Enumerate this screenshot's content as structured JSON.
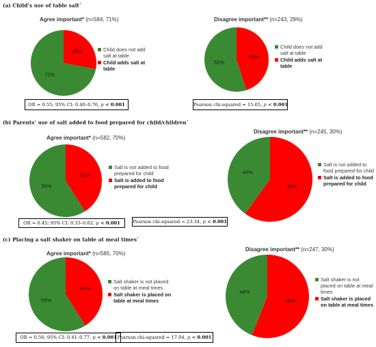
{
  "colors": {
    "green": "#3a8a34",
    "red": "#ff0000"
  },
  "sections": [
    {
      "title": "(a) Child’s use of table salt",
      "dagger": "•"
    },
    {
      "title": "(b) Parents’ use of salt added to food prepared for child/children",
      "dagger": "•"
    },
    {
      "title": "(c) Placing a salt shaker on table at meal times",
      "dagger": "•"
    }
  ],
  "stats": [
    {
      "a": "OR = 0.55; 95% CI: 0.40–0.76, ",
      "p": "p",
      "b": " < 0.001"
    },
    {
      "a": "Pearson chi-squared = 15.65, ",
      "p": "p",
      "b": " < 0.001"
    },
    {
      "a": "OR = 0.45; 95% CI: 0.33–0.62, ",
      "p": "p",
      "b": " < 0.001"
    },
    {
      "a": "Pearson chi-squared = 23.34, ",
      "p": "p",
      "b": " < 0.001"
    },
    {
      "a": "OR = 0.56; 95% CI: 0.41–0.77, ",
      "p": "p",
      "b": " < 0.001"
    },
    {
      "a": "Pearson chi-squared = 17.04, ",
      "p": "p",
      "b": " < 0.001"
    }
  ],
  "chart_data": [
    {
      "type": "pie",
      "title": "Agree important*",
      "n_label": "(n=584, 71%)",
      "categories": [
        "Child does not add salt at table",
        "Child adds salt at table"
      ],
      "values": [
        72,
        28
      ],
      "labels": [
        "72%",
        "28%"
      ],
      "legend": "right"
    },
    {
      "type": "pie",
      "title": "Disagree important**",
      "n_label": "(n=243, 29%)",
      "categories": [
        "Child does not add salt at table",
        "Child adds salt at table"
      ],
      "values": [
        55,
        45
      ],
      "labels": [
        "55%",
        "45%"
      ],
      "legend": "right"
    },
    {
      "type": "pie",
      "title": "Agree important*",
      "n_label": "(n=582, 70%)",
      "categories": [
        "Salt is not added to food prepared for child",
        "Salt is added to food prepared for child"
      ],
      "values": [
        59,
        41
      ],
      "labels": [
        "59%",
        "41%"
      ],
      "legend": "right"
    },
    {
      "type": "pie",
      "title": "Disagree important**",
      "n_label": "(n=245, 30%)",
      "categories": [
        "Salt is not added to food prepared for child",
        "Salt is added to food prepared for child"
      ],
      "values": [
        40,
        60
      ],
      "labels": [
        "40%",
        "60%"
      ],
      "legend": "right"
    },
    {
      "type": "pie",
      "title": "Agree important*",
      "n_label": "(n=585, 70%)",
      "categories": [
        "Salt shaker is not placed on table at meal times",
        "Salt shaker is placed on table at meal times"
      ],
      "values": [
        59,
        41
      ],
      "labels": [
        "59%",
        "41%"
      ],
      "legend": "right"
    },
    {
      "type": "pie",
      "title": "Disagree important**",
      "n_label": "(n=247, 30%)",
      "categories": [
        "Salt shaker is not placed on table at meal times",
        "Salt shaker is placed on table at meal times"
      ],
      "values": [
        44,
        56
      ],
      "labels": [
        "44%",
        "56%"
      ],
      "legend": "right"
    }
  ]
}
